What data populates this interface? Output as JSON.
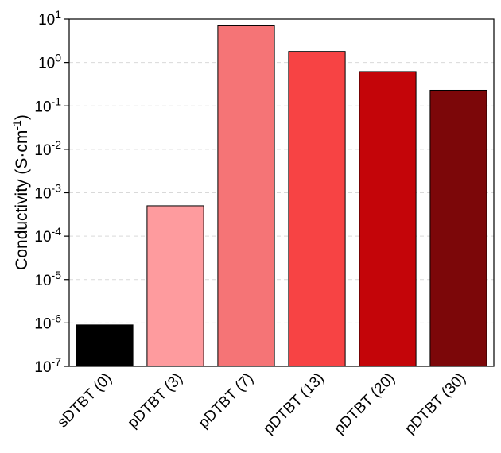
{
  "chart_data": {
    "type": "bar",
    "categories": [
      "sDTBT (0)",
      "pDTBT (3)",
      "pDTBT (7)",
      "pDTBT (13)",
      "pDTBT (20)",
      "pDTBT (30)"
    ],
    "values": [
      9e-07,
      0.0005,
      7.0,
      1.8,
      0.62,
      0.23
    ],
    "colors": [
      "#000000",
      "#fe9b9e",
      "#f57476",
      "#f74344",
      "#c40509",
      "#7c0709"
    ],
    "ylabel": {
      "main": "Conductivity (S·cm",
      "sup": "-1",
      "close": ")"
    },
    "yscale": "log",
    "ylim": [
      1e-07,
      10
    ],
    "yticks": [
      {
        "value": 1e-07,
        "base": "10",
        "exp": "-7"
      },
      {
        "value": 1e-06,
        "base": "10",
        "exp": "-6"
      },
      {
        "value": 1e-05,
        "base": "10",
        "exp": "-5"
      },
      {
        "value": 0.0001,
        "base": "10",
        "exp": "-4"
      },
      {
        "value": 0.001,
        "base": "10",
        "exp": "-3"
      },
      {
        "value": 0.01,
        "base": "10",
        "exp": "-2"
      },
      {
        "value": 0.1,
        "base": "10",
        "exp": "-1"
      },
      {
        "value": 1,
        "base": "10",
        "exp": "0"
      },
      {
        "value": 10,
        "base": "10",
        "exp": "1"
      }
    ],
    "grid": true
  }
}
